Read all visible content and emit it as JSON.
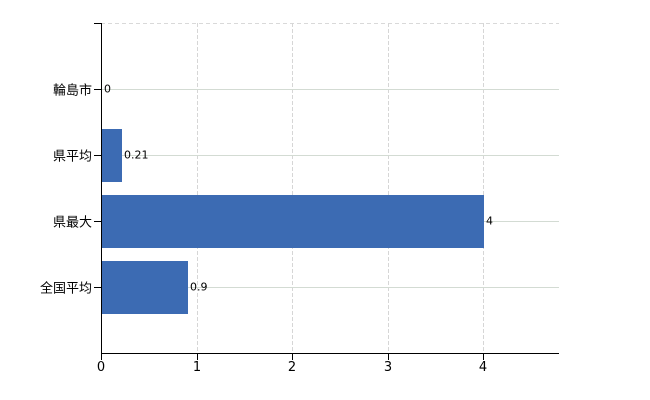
{
  "chart_data": {
    "type": "bar",
    "orientation": "horizontal",
    "title": "",
    "xlabel": "",
    "ylabel": "",
    "categories": [
      "輪島市",
      "県平均",
      "県最大",
      "全国平均"
    ],
    "values": [
      0,
      0.21,
      4,
      0.9
    ],
    "value_labels": [
      "0",
      "0.21",
      "4",
      "0.9"
    ],
    "x_tick_labels": [
      "0",
      "1",
      "2",
      "3",
      "4"
    ],
    "x_ticks": [
      0,
      1,
      2,
      3,
      4
    ],
    "xlim": [
      0,
      4.8
    ],
    "grid": true,
    "legend_position": "none",
    "colors": {
      "bar": "#3c6bb3",
      "axis": "#000000",
      "horizontal_gridline": "#d3dbd3",
      "vertical_gridline": "#d6d6d6",
      "top_border": "#d9d9d9",
      "label_text": "#000000",
      "background": "#ffffff"
    }
  }
}
